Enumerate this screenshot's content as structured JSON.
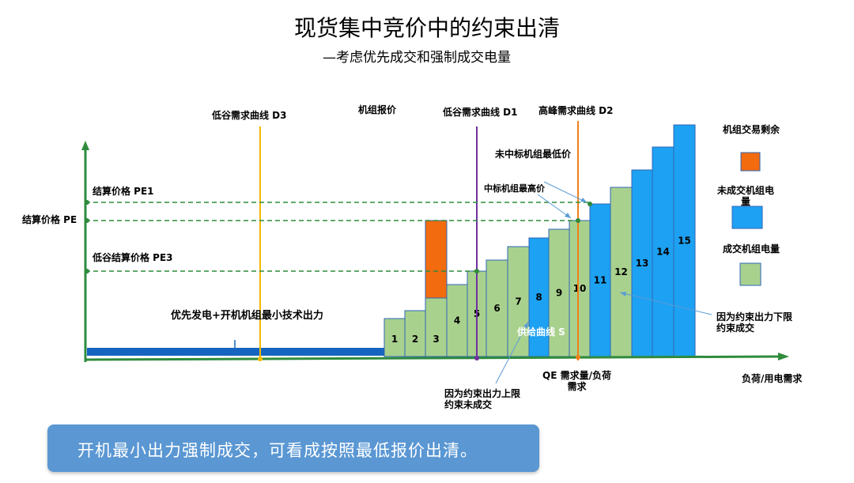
{
  "title": "现货集中竞价中的约束出清",
  "subtitle": "—考虑优先成交和强制成交电量",
  "labels": {
    "d3": "低谷需求曲线  D3",
    "unit_bid": "机组报价",
    "d1": "低谷需求曲线  D1",
    "d2": "高峰需求曲线  D2",
    "pe1": "结算价格 PE1",
    "pe": "结算价格 PE",
    "pe3": "低谷结算价格 PE3",
    "priority": "优先发电+开机机组最小技术出力",
    "unwon_min": "未中标机组最低价",
    "won_max": "中标机组最高价",
    "supply": "供给曲线  S",
    "qe_line1": "QE 需求量/负荷",
    "qe_line2": "需求",
    "x_axis": "负荷/用电需求",
    "upper_note_1": "因为约束出力上限",
    "upper_note_2": "约束未成交",
    "lower_note_1": "因为约束出力下限",
    "lower_note_2": "约束成交"
  },
  "legend": {
    "surplus": "机组交易剩余",
    "unsold_1": "未成交机组电",
    "unsold_2": "量",
    "sold": "成交机组电量"
  },
  "colors": {
    "green": "#a9d18e",
    "blue": "#1da1f2",
    "orange": "#f26b0f",
    "axis": "#2e8b3c",
    "d3": "#f5b800",
    "d1": "#7030a0",
    "d2": "#f07f19",
    "border": "#2e66b5"
  },
  "blocks": [
    {
      "num": "1",
      "status": "sold"
    },
    {
      "num": "2",
      "status": "sold"
    },
    {
      "num": "3",
      "status": "sold",
      "surplus": true
    },
    {
      "num": "4",
      "status": "sold"
    },
    {
      "num": "5",
      "status": "sold"
    },
    {
      "num": "6",
      "status": "sold"
    },
    {
      "num": "7",
      "status": "sold"
    },
    {
      "num": "8",
      "status": "unsold"
    },
    {
      "num": "9",
      "status": "sold"
    },
    {
      "num": "10",
      "status": "sold"
    },
    {
      "num": "11",
      "status": "unsold"
    },
    {
      "num": "12",
      "status": "sold"
    },
    {
      "num": "13",
      "status": "unsold"
    },
    {
      "num": "14",
      "status": "unsold"
    },
    {
      "num": "15",
      "status": "unsold"
    }
  ],
  "banner": "开机最小出力强制成交，可看成按照最低报价出清。"
}
